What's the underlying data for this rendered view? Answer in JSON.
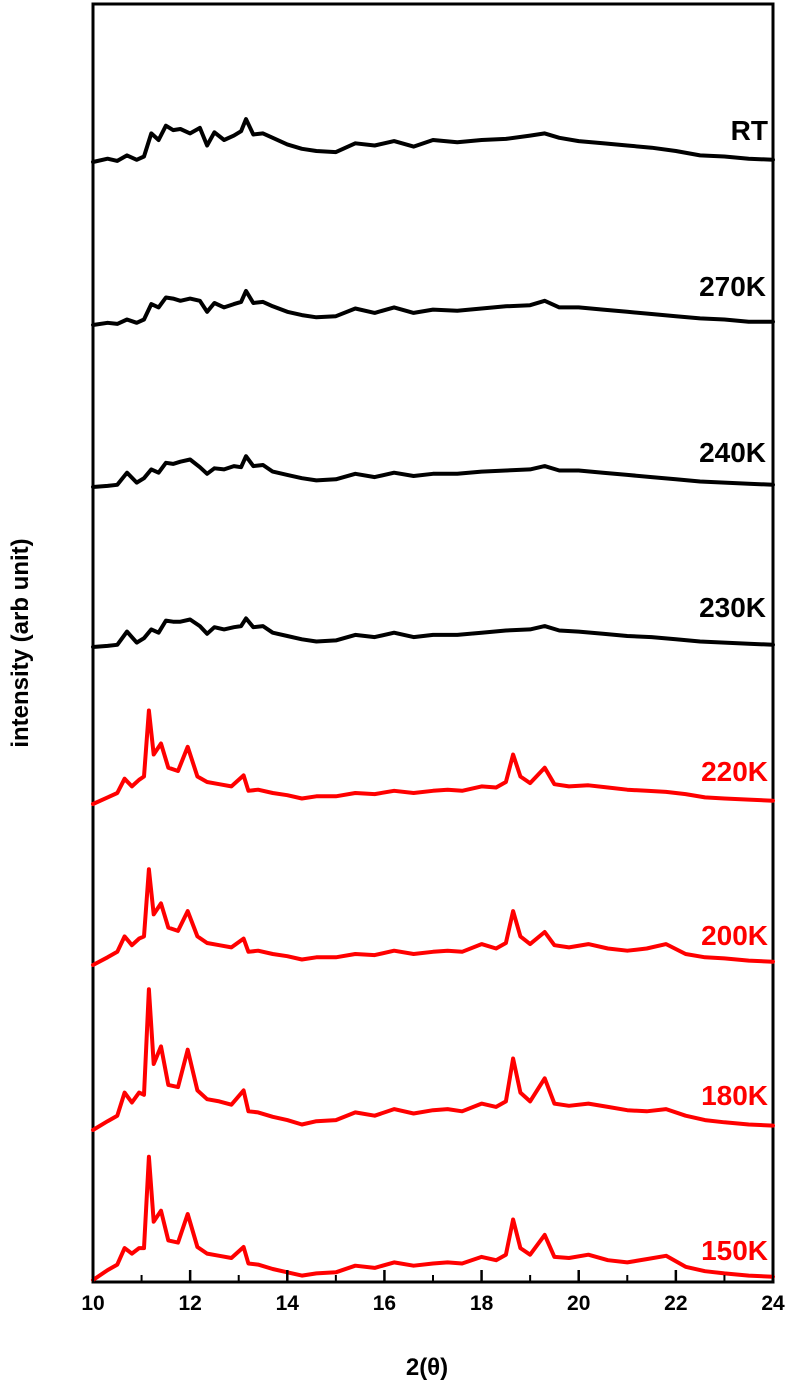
{
  "chart_data": {
    "type": "line",
    "title": "",
    "xlabel": "2(θ)",
    "ylabel": "intensity (arb unit)",
    "xlim": [
      10,
      24
    ],
    "xticks": [
      "10",
      "12",
      "14",
      "16",
      "18",
      "20",
      "22",
      "24"
    ],
    "grid": false,
    "legend": "none",
    "series": [
      {
        "name": "RT",
        "color": "#000000",
        "x": [
          10,
          10.3,
          10.5,
          10.7,
          10.9,
          11.05,
          11.2,
          11.35,
          11.5,
          11.65,
          11.8,
          12.0,
          12.2,
          12.35,
          12.5,
          12.7,
          12.9,
          13.05,
          13.15,
          13.3,
          13.5,
          13.7,
          14.0,
          14.3,
          14.6,
          15.0,
          15.4,
          15.8,
          16.2,
          16.6,
          17.0,
          17.5,
          18.0,
          18.5,
          19.0,
          19.3,
          19.6,
          20.0,
          20.5,
          21.0,
          21.5,
          22.0,
          22.5,
          23.0,
          23.5,
          24.0
        ],
        "y": [
          0,
          0.3,
          0.1,
          0.6,
          0.2,
          0.5,
          2.6,
          2.0,
          3.3,
          2.9,
          3.0,
          2.6,
          3.1,
          1.5,
          2.7,
          2.0,
          2.4,
          2.8,
          3.9,
          2.5,
          2.6,
          2.2,
          1.6,
          1.2,
          1.0,
          0.9,
          1.7,
          1.5,
          1.9,
          1.4,
          2.0,
          1.8,
          2.0,
          2.1,
          2.4,
          2.6,
          2.2,
          1.9,
          1.7,
          1.5,
          1.3,
          1.0,
          0.6,
          0.5,
          0.3,
          0.2
        ]
      },
      {
        "name": "270K",
        "color": "#000000",
        "x": [
          10,
          10.3,
          10.5,
          10.7,
          10.9,
          11.05,
          11.2,
          11.35,
          11.5,
          11.65,
          11.8,
          12.0,
          12.2,
          12.35,
          12.5,
          12.7,
          12.9,
          13.05,
          13.15,
          13.3,
          13.5,
          13.7,
          14.0,
          14.3,
          14.6,
          15.0,
          15.4,
          15.8,
          16.2,
          16.6,
          17.0,
          17.5,
          18.0,
          18.5,
          19.0,
          19.3,
          19.6,
          20.0,
          20.5,
          21.0,
          21.5,
          22.0,
          22.5,
          23.0,
          23.5,
          24.0
        ],
        "y": [
          0,
          0.2,
          0.1,
          0.5,
          0.2,
          0.5,
          1.9,
          1.6,
          2.5,
          2.4,
          2.2,
          2.4,
          2.2,
          1.2,
          2.0,
          1.6,
          1.9,
          2.1,
          3.1,
          2.0,
          2.1,
          1.7,
          1.2,
          0.9,
          0.7,
          0.8,
          1.5,
          1.1,
          1.6,
          1.1,
          1.4,
          1.3,
          1.5,
          1.7,
          1.8,
          2.2,
          1.6,
          1.6,
          1.4,
          1.2,
          1.0,
          0.8,
          0.6,
          0.5,
          0.3,
          0.3
        ]
      },
      {
        "name": "240K",
        "color": "#000000",
        "x": [
          10,
          10.3,
          10.5,
          10.7,
          10.9,
          11.05,
          11.2,
          11.35,
          11.5,
          11.65,
          11.8,
          12.0,
          12.2,
          12.35,
          12.5,
          12.7,
          12.9,
          13.05,
          13.15,
          13.3,
          13.5,
          13.7,
          14.0,
          14.3,
          14.6,
          15.0,
          15.4,
          15.8,
          16.2,
          16.6,
          17.0,
          17.5,
          18.0,
          18.5,
          19.0,
          19.3,
          19.6,
          20.0,
          20.5,
          21.0,
          21.5,
          22.0,
          22.5,
          23.0,
          23.5,
          24.0
        ],
        "y": [
          0,
          0.1,
          0.2,
          1.3,
          0.4,
          0.8,
          1.6,
          1.3,
          2.2,
          2.1,
          2.3,
          2.5,
          1.8,
          1.2,
          1.7,
          1.6,
          1.9,
          1.8,
          2.8,
          1.9,
          2.0,
          1.4,
          1.1,
          0.8,
          0.6,
          0.7,
          1.2,
          0.9,
          1.3,
          1.0,
          1.2,
          1.2,
          1.4,
          1.5,
          1.6,
          1.9,
          1.5,
          1.5,
          1.3,
          1.1,
          0.9,
          0.7,
          0.5,
          0.4,
          0.3,
          0.2
        ]
      },
      {
        "name": "230K",
        "color": "#000000",
        "x": [
          10,
          10.3,
          10.5,
          10.7,
          10.9,
          11.05,
          11.2,
          11.35,
          11.5,
          11.65,
          11.8,
          12.0,
          12.2,
          12.35,
          12.5,
          12.7,
          12.9,
          13.05,
          13.15,
          13.3,
          13.5,
          13.7,
          14.0,
          14.3,
          14.6,
          15.0,
          15.4,
          15.8,
          16.2,
          16.6,
          17.0,
          17.5,
          18.0,
          18.5,
          19.0,
          19.3,
          19.6,
          20.0,
          20.5,
          21.0,
          21.5,
          22.0,
          22.5,
          23.0,
          23.5,
          24.0
        ],
        "y": [
          0,
          0.1,
          0.2,
          1.4,
          0.4,
          0.8,
          1.6,
          1.3,
          2.4,
          2.3,
          2.3,
          2.5,
          1.9,
          1.2,
          1.8,
          1.6,
          1.8,
          1.9,
          2.6,
          1.8,
          1.9,
          1.3,
          1.0,
          0.7,
          0.5,
          0.6,
          1.1,
          0.9,
          1.3,
          0.9,
          1.1,
          1.1,
          1.3,
          1.5,
          1.6,
          1.9,
          1.5,
          1.4,
          1.2,
          1.0,
          0.9,
          0.7,
          0.5,
          0.4,
          0.3,
          0.2
        ]
      },
      {
        "name": "220K",
        "color": "#ff0000",
        "x": [
          10,
          10.3,
          10.5,
          10.65,
          10.8,
          10.95,
          11.05,
          11.15,
          11.25,
          11.4,
          11.55,
          11.75,
          11.95,
          12.15,
          12.35,
          12.6,
          12.85,
          13.1,
          13.2,
          13.4,
          13.7,
          14.0,
          14.3,
          14.6,
          15.0,
          15.4,
          15.8,
          16.2,
          16.6,
          17.0,
          17.3,
          17.6,
          18.0,
          18.3,
          18.5,
          18.65,
          18.8,
          19.0,
          19.3,
          19.5,
          19.8,
          20.2,
          20.6,
          21.0,
          21.4,
          21.8,
          22.2,
          22.6,
          23.0,
          23.5,
          24.0
        ],
        "y": [
          0,
          0.6,
          1.0,
          2.3,
          1.6,
          2.2,
          2.5,
          8.5,
          4.5,
          5.5,
          3.3,
          3.0,
          5.2,
          2.5,
          2.0,
          1.8,
          1.6,
          2.6,
          1.2,
          1.3,
          1.0,
          0.8,
          0.5,
          0.7,
          0.7,
          1.0,
          0.9,
          1.2,
          1.0,
          1.2,
          1.3,
          1.2,
          1.6,
          1.5,
          2.0,
          4.5,
          2.5,
          1.9,
          3.3,
          1.8,
          1.6,
          1.7,
          1.5,
          1.3,
          1.2,
          1.1,
          0.9,
          0.6,
          0.5,
          0.4,
          0.3
        ]
      },
      {
        "name": "200K",
        "color": "#ff0000",
        "x": [
          10,
          10.3,
          10.5,
          10.65,
          10.8,
          10.95,
          11.05,
          11.15,
          11.25,
          11.4,
          11.55,
          11.75,
          11.95,
          12.15,
          12.35,
          12.6,
          12.85,
          13.1,
          13.2,
          13.4,
          13.7,
          14.0,
          14.3,
          14.6,
          15.0,
          15.4,
          15.8,
          16.2,
          16.6,
          17.0,
          17.3,
          17.6,
          18.0,
          18.3,
          18.5,
          18.65,
          18.8,
          19.0,
          19.3,
          19.5,
          19.8,
          20.2,
          20.6,
          21.0,
          21.4,
          21.8,
          22.2,
          22.6,
          23.0,
          23.5,
          24.0
        ],
        "y": [
          0,
          0.7,
          1.2,
          2.6,
          1.8,
          2.4,
          2.6,
          8.7,
          4.6,
          5.6,
          3.4,
          3.1,
          4.9,
          2.6,
          2.0,
          1.8,
          1.6,
          2.4,
          1.2,
          1.3,
          1.0,
          0.8,
          0.5,
          0.7,
          0.7,
          1.0,
          0.9,
          1.3,
          1.0,
          1.2,
          1.3,
          1.2,
          1.9,
          1.5,
          2.0,
          4.9,
          2.6,
          1.9,
          3.0,
          1.8,
          1.6,
          1.9,
          1.5,
          1.3,
          1.5,
          1.9,
          1.0,
          0.7,
          0.6,
          0.4,
          0.3
        ]
      },
      {
        "name": "180K",
        "color": "#ff0000",
        "x": [
          10,
          10.3,
          10.5,
          10.65,
          10.8,
          10.95,
          11.05,
          11.15,
          11.25,
          11.4,
          11.55,
          11.75,
          11.95,
          12.15,
          12.35,
          12.6,
          12.85,
          13.1,
          13.2,
          13.4,
          13.7,
          14.0,
          14.3,
          14.6,
          15.0,
          15.4,
          15.8,
          16.2,
          16.6,
          17.0,
          17.3,
          17.6,
          18.0,
          18.3,
          18.5,
          18.65,
          18.8,
          19.0,
          19.3,
          19.5,
          19.8,
          20.2,
          20.6,
          21.0,
          21.4,
          21.8,
          22.2,
          22.6,
          23.0,
          23.5,
          24.0
        ],
        "y": [
          0,
          0.8,
          1.3,
          3.4,
          2.5,
          3.4,
          3.2,
          12.8,
          6.0,
          7.6,
          4.1,
          3.9,
          7.3,
          3.6,
          2.8,
          2.6,
          2.3,
          3.6,
          1.7,
          1.6,
          1.2,
          0.9,
          0.5,
          0.8,
          0.9,
          1.6,
          1.3,
          1.9,
          1.5,
          1.8,
          1.9,
          1.7,
          2.4,
          2.1,
          2.6,
          6.5,
          3.4,
          2.6,
          4.7,
          2.4,
          2.2,
          2.4,
          2.1,
          1.8,
          1.7,
          1.9,
          1.3,
          0.9,
          0.7,
          0.5,
          0.4
        ]
      },
      {
        "name": "150K",
        "color": "#ff0000",
        "x": [
          10,
          10.3,
          10.5,
          10.65,
          10.8,
          10.95,
          11.05,
          11.15,
          11.25,
          11.4,
          11.55,
          11.75,
          11.95,
          12.15,
          12.35,
          12.6,
          12.85,
          13.1,
          13.2,
          13.4,
          13.7,
          14.0,
          14.3,
          14.6,
          15.0,
          15.4,
          15.8,
          16.2,
          16.6,
          17.0,
          17.3,
          17.6,
          18.0,
          18.3,
          18.5,
          18.65,
          18.8,
          19.0,
          19.3,
          19.5,
          19.8,
          20.2,
          20.6,
          21.0,
          21.4,
          21.8,
          22.2,
          22.6,
          23.0,
          23.5,
          24.0
        ],
        "y": [
          0,
          0.9,
          1.4,
          2.9,
          2.4,
          2.9,
          2.9,
          11.2,
          5.3,
          6.3,
          3.6,
          3.4,
          6.0,
          3.0,
          2.4,
          2.2,
          2.0,
          3.0,
          1.5,
          1.4,
          1.0,
          0.7,
          0.4,
          0.6,
          0.7,
          1.3,
          1.1,
          1.6,
          1.3,
          1.5,
          1.6,
          1.5,
          2.1,
          1.8,
          2.3,
          5.5,
          2.9,
          2.3,
          4.1,
          2.1,
          2.0,
          2.3,
          1.8,
          1.6,
          1.9,
          2.2,
          1.2,
          0.8,
          0.6,
          0.4,
          0.3
        ]
      }
    ]
  }
}
